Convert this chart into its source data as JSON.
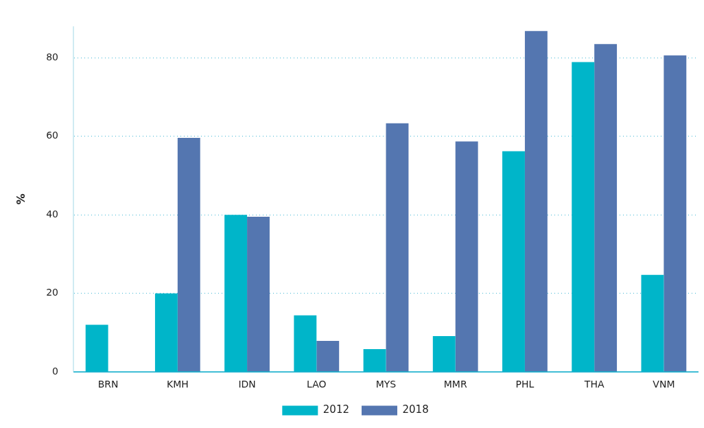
{
  "chart_data": {
    "type": "bar",
    "ylabel": "%",
    "categories": [
      "BRN",
      "KMH",
      "IDN",
      "LAO",
      "MYS",
      "MMR",
      "PHL",
      "THA",
      "VNM"
    ],
    "series": [
      {
        "name": "2012",
        "color": "#00b5c9",
        "values": [
          12,
          20,
          40,
          14.4,
          5.8,
          9.1,
          56.2,
          78.9,
          24.7
        ]
      },
      {
        "name": "2018",
        "color": "#5476b0",
        "values": [
          null,
          59.6,
          39.5,
          7.9,
          63.3,
          58.7,
          86.8,
          83.5,
          80.6
        ]
      }
    ],
    "ylim": [
      0,
      88
    ],
    "yticks": [
      0,
      20,
      40,
      60,
      80
    ],
    "grid": "y",
    "legend": "bottom"
  }
}
